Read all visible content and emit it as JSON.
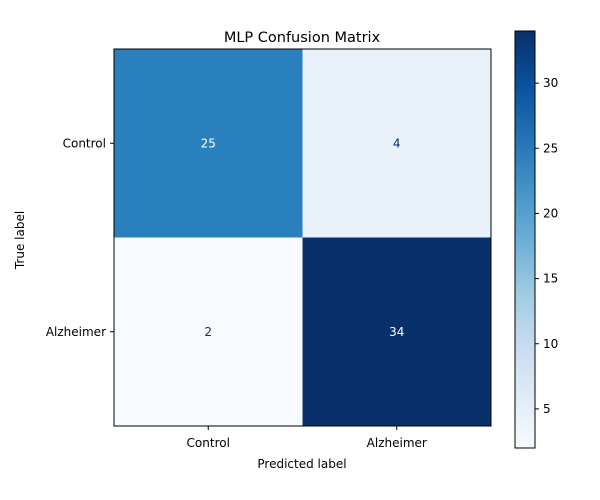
{
  "chart_data": {
    "type": "heatmap",
    "title": "MLP Confusion Matrix",
    "xlabel": "Predicted label",
    "ylabel": "True label",
    "x_categories": [
      "Control",
      "Alzheimer"
    ],
    "y_categories": [
      "Control",
      "Alzheimer"
    ],
    "matrix": [
      [
        25,
        4
      ],
      [
        2,
        34
      ]
    ],
    "colormap": "Blues",
    "colorbar": {
      "min": 2,
      "max": 34,
      "ticks": [
        5,
        10,
        15,
        20,
        25,
        30
      ]
    },
    "cell_colors": [
      [
        "#2a7fbd",
        "#e9f2fa"
      ],
      [
        "#f7fbff",
        "#08306b"
      ]
    ],
    "text_colors": [
      [
        "#ffffff",
        "#08306b"
      ],
      [
        "#08306b",
        "#ffffff"
      ]
    ]
  }
}
